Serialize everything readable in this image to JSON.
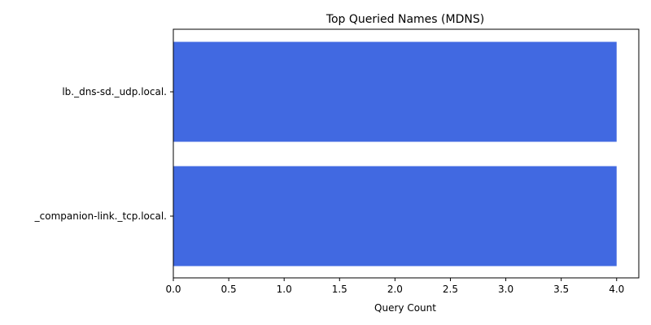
{
  "chart_data": {
    "type": "bar",
    "orientation": "horizontal",
    "title": "Top Queried Names (MDNS)",
    "xlabel": "Query Count",
    "ylabel": "",
    "categories": [
      "lb._dns-sd._udp.local.",
      "_companion-link._tcp.local."
    ],
    "values": [
      4,
      4
    ],
    "xlim": [
      0,
      4.2
    ],
    "xticks": [
      "0.0",
      "0.5",
      "1.0",
      "1.5",
      "2.0",
      "2.5",
      "3.0",
      "3.5",
      "4.0"
    ],
    "bar_color": "#4169e1",
    "grid": false,
    "legend": "none"
  }
}
